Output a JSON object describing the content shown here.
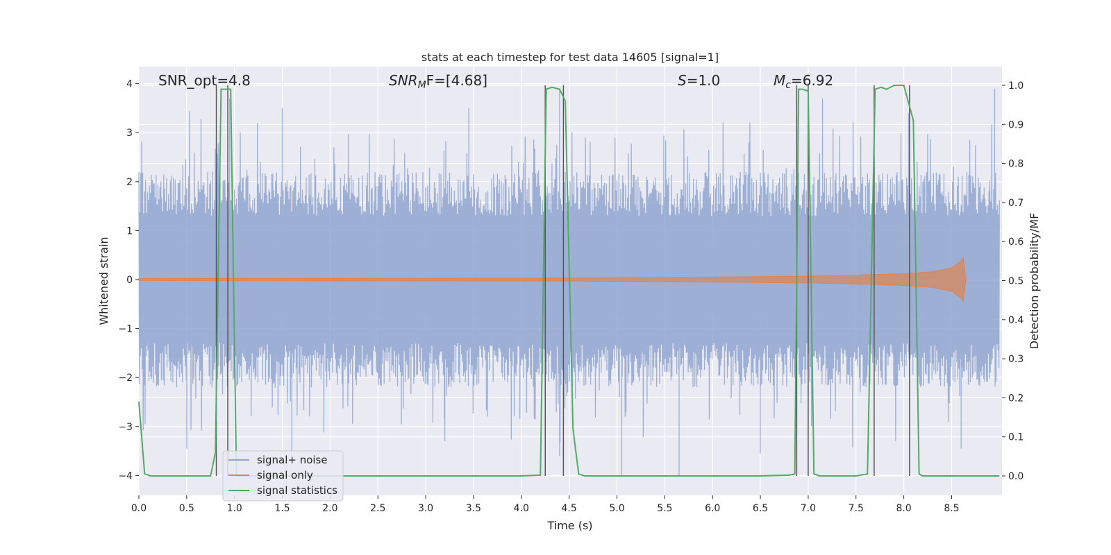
{
  "chart_data": {
    "type": "line",
    "title": "stats at each timestep for test data 14605 [signal=1]",
    "xlabel": "Time (s)",
    "ylabel": "Whitened strain",
    "ylabel_right": "Detection probability/MF",
    "xlim": [
      0.0,
      9.0
    ],
    "ylim": [
      -4.4,
      4.3
    ],
    "ylim_right": [
      -0.05,
      1.05
    ],
    "x_ticks": [
      "0.0",
      "0.5",
      "1.0",
      "1.5",
      "2.0",
      "2.5",
      "3.0",
      "3.5",
      "4.0",
      "4.5",
      "5.0",
      "5.5",
      "6.0",
      "6.5",
      "7.0",
      "7.5",
      "8.0",
      "8.5"
    ],
    "y_ticks": [
      "4",
      "3",
      "2",
      "1",
      "0",
      "−1",
      "−2",
      "−3",
      "−4"
    ],
    "y_right_ticks": [
      "1.0",
      "0.9",
      "0.8",
      "0.7",
      "0.6",
      "0.5",
      "0.4",
      "0.3",
      "0.2",
      "0.1",
      "0.0"
    ],
    "grid": true,
    "legend_position": "lower-left",
    "annotations": {
      "snr_opt": "SNR_opt=4.8",
      "snr_mf_base": "SNR",
      "snr_mf_sub": "M",
      "snr_mf_rest": "F=[4.68]",
      "s_base": "S",
      "s_rest": "=1.0",
      "mc_base": "M",
      "mc_sub": "c",
      "mc_rest": "=6.92"
    },
    "series": [
      {
        "name": "signal+ noise",
        "color": "#8fa4cf",
        "envelope": {
          "typical_abs": [
            1.3,
            2.2
          ],
          "extreme_max": 3.9,
          "extreme_min": -4.0
        },
        "notable_peaks": [
          [
            0.95,
            3.7
          ],
          [
            1.5,
            3.5
          ],
          [
            3.45,
            3.5
          ],
          [
            4.4,
            3.9
          ],
          [
            7.15,
            3.7
          ],
          [
            8.05,
            3.4
          ],
          [
            8.95,
            3.9
          ]
        ],
        "notable_troughs": [
          [
            0.5,
            -3.45
          ],
          [
            1.6,
            -3.6
          ],
          [
            3.2,
            -3.3
          ],
          [
            4.4,
            -3.6
          ],
          [
            5.05,
            -4.0
          ],
          [
            5.65,
            -4.0
          ],
          [
            6.5,
            -3.55
          ],
          [
            8.6,
            -3.45
          ]
        ]
      },
      {
        "name": "signal only",
        "color": "#dd8452",
        "envelope_x": [
          0.0,
          4.5,
          6.0,
          7.0,
          7.5,
          8.0,
          8.3,
          8.5,
          8.6,
          8.62,
          8.65
        ],
        "envelope_amp": [
          0.02,
          0.03,
          0.05,
          0.07,
          0.09,
          0.12,
          0.16,
          0.24,
          0.38,
          0.45,
          0.0
        ]
      },
      {
        "name": "signal statistics",
        "color": "#55a868",
        "axis": "right",
        "x": [
          0.0,
          0.06,
          0.12,
          0.2,
          0.4,
          0.6,
          0.75,
          0.8,
          0.86,
          0.9,
          0.96,
          1.02,
          1.08,
          1.15,
          1.3,
          2.0,
          3.0,
          4.0,
          4.2,
          4.26,
          4.32,
          4.4,
          4.46,
          4.54,
          4.6,
          4.66,
          4.8,
          5.5,
          6.5,
          6.8,
          6.86,
          6.9,
          6.94,
          7.0,
          7.06,
          7.12,
          7.3,
          7.5,
          7.62,
          7.7,
          7.76,
          7.82,
          7.9,
          8.0,
          8.1,
          8.16,
          8.2,
          8.3,
          8.5,
          9.0
        ],
        "y": [
          0.19,
          0.005,
          0.0,
          0.0,
          0.0,
          0.0,
          0.0,
          0.06,
          0.99,
          0.99,
          0.99,
          0.0,
          0.0,
          0.0,
          0.0,
          0.0,
          0.0,
          0.0,
          0.002,
          0.99,
          0.995,
          0.99,
          0.96,
          0.12,
          0.005,
          0.0,
          0.0,
          0.0,
          0.0,
          0.002,
          0.005,
          0.99,
          0.99,
          0.985,
          0.005,
          0.0,
          0.0,
          0.0,
          0.005,
          0.99,
          0.995,
          0.99,
          1.0,
          1.0,
          0.91,
          0.005,
          0.0,
          0.0,
          0.0,
          0.0
        ]
      }
    ],
    "vertical_lines_x": [
      0.81,
      0.93,
      4.25,
      4.44,
      6.88,
      7.0,
      7.69,
      8.06
    ]
  }
}
